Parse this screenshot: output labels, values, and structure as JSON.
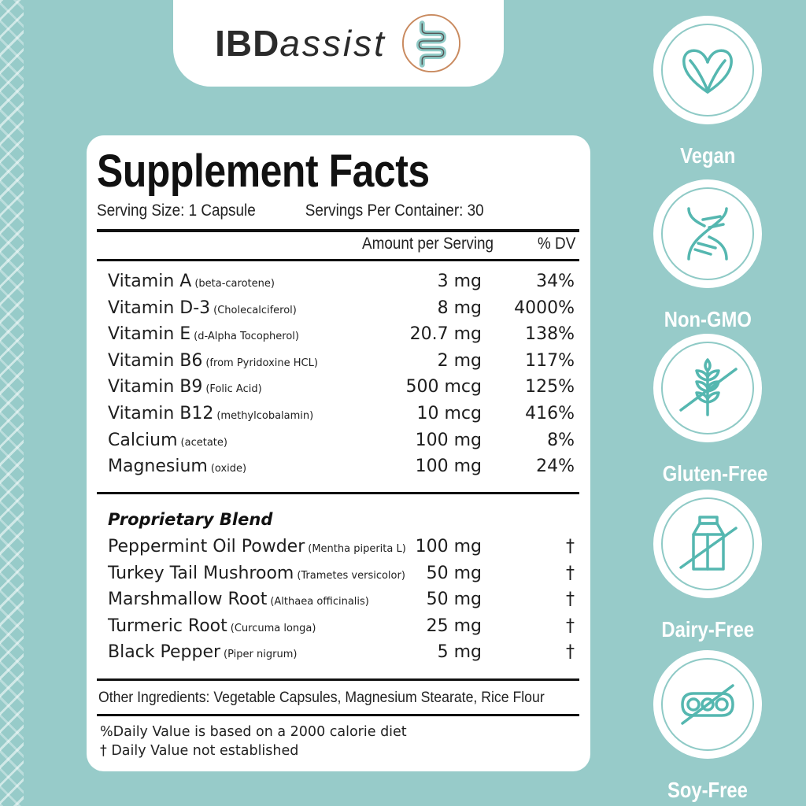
{
  "brand": {
    "name_bold": "IBD",
    "name_light": "assist",
    "logo_icon": "intestine-icon"
  },
  "colors": {
    "background": "#97cbc9",
    "card": "#ffffff",
    "badge_stroke": "#55b7b0",
    "text": "#1a1a1a"
  },
  "facts": {
    "title": "Supplement Facts",
    "serving_size": "Serving Size: 1 Capsule",
    "servings_per_container": "Servings Per Container: 30",
    "header_amount": "Amount per Serving",
    "header_dv": "% DV",
    "nutrients": [
      {
        "name": "Vitamin A",
        "source": "(beta-carotene)",
        "amount": "3 mg",
        "dv": "34%"
      },
      {
        "name": "Vitamin D-3",
        "source": "(Cholecalciferol)",
        "amount": "8 mg",
        "dv": "4000%"
      },
      {
        "name": "Vitamin E",
        "source": "(d-Alpha Tocopherol)",
        "amount": "20.7 mg",
        "dv": "138%"
      },
      {
        "name": "Vitamin B6",
        "source": "(from Pyridoxine HCL)",
        "amount": "2 mg",
        "dv": "117%"
      },
      {
        "name": "Vitamin B9",
        "source": "(Folic Acid)",
        "amount": "500 mcg",
        "dv": "125%"
      },
      {
        "name": "Vitamin B12",
        "source": "(methylcobalamin)",
        "amount": "10 mcg",
        "dv": "416%"
      },
      {
        "name": "Calcium",
        "source": "(acetate)",
        "amount": "100 mg",
        "dv": "8%"
      },
      {
        "name": "Magnesium",
        "source": "(oxide)",
        "amount": "100 mg",
        "dv": "24%"
      }
    ],
    "blend_title": "Proprietary Blend",
    "blend": [
      {
        "name": "Peppermint Oil Powder",
        "source": "(Mentha piperita L)",
        "amount": "100 mg",
        "dv": "†"
      },
      {
        "name": "Turkey Tail Mushroom",
        "source": "(Trametes versicolor)",
        "amount": "50 mg",
        "dv": "†"
      },
      {
        "name": "Marshmallow Root",
        "source": "(Althaea officinalis)",
        "amount": "50 mg",
        "dv": "†"
      },
      {
        "name": "Turmeric Root",
        "source": "(Curcuma longa)",
        "amount": "25 mg",
        "dv": "†"
      },
      {
        "name": "Black Pepper",
        "source": "(Piper nigrum)",
        "amount": "5 mg",
        "dv": "†"
      }
    ],
    "other_ingredients": "Other Ingredients:  Vegetable Capsules, Magnesium Stearate, Rice Flour",
    "footnote_dv": "%Daily Value is based on a 2000 calorie diet",
    "footnote_dagger": "† Daily Value not established"
  },
  "badges": [
    {
      "label": "Vegan",
      "icon": "leaf-heart-icon"
    },
    {
      "label": "Non-GMO",
      "icon": "dna-icon"
    },
    {
      "label": "Gluten-Free",
      "icon": "wheat-crossed-icon"
    },
    {
      "label": "Dairy-Free",
      "icon": "milk-carton-crossed-icon"
    },
    {
      "label": "Soy-Free",
      "icon": "soybean-crossed-icon"
    }
  ]
}
